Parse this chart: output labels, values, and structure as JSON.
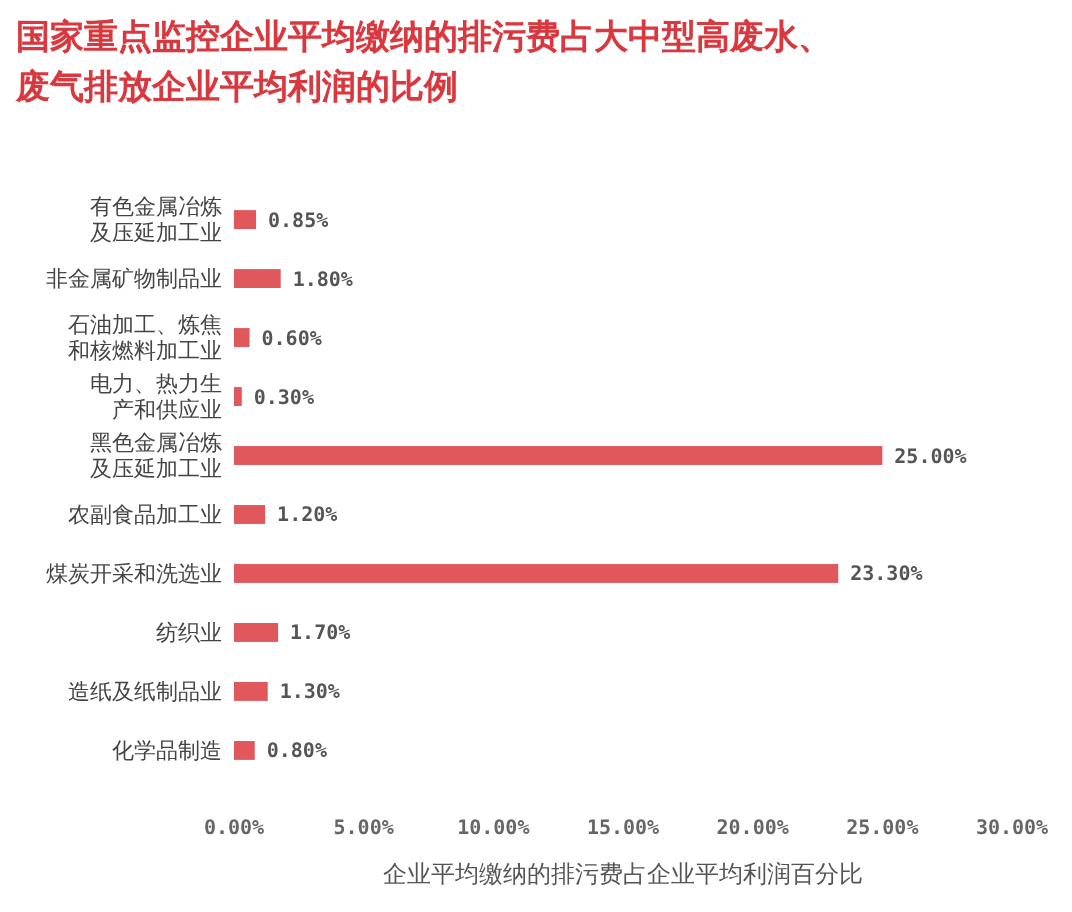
{
  "chart_data": {
    "type": "bar",
    "orientation": "horizontal",
    "title": "国家重点监控企业平均缴纳的排污费占大中型高废水、废气排放企业平均利润的比例",
    "xlabel": "企业平均缴纳的排污费占企业平均利润百分比",
    "categories": [
      "有色金属冶炼及压延加工业",
      "非金属矿物制品业",
      "石油加工、炼焦和核燃料加工业",
      "电力、热力生产和供应业",
      "黑色金属冶炼及压延加工业",
      "农副食品加工业",
      "煤炭开采和洗选业",
      "纺织业",
      "造纸及纸制品业",
      "化学品制造"
    ],
    "values": [
      0.85,
      1.8,
      0.6,
      0.3,
      25,
      1.2,
      23.3,
      1.7,
      1.3,
      0.8
    ],
    "value_labels": [
      "0.85%",
      "1.80%",
      "0.60%",
      "0.30%",
      "25.00%",
      "1.20%",
      "23.30%",
      "1.70%",
      "1.30%",
      "0.80%"
    ],
    "color": "#e0575c",
    "xlim": [
      0,
      30
    ],
    "xticks": [
      {
        "value": 0,
        "label": "0.00%"
      },
      {
        "value": 5,
        "label": "5.00%"
      },
      {
        "value": 10,
        "label": "10.00%"
      },
      {
        "value": 15,
        "label": "15.00%"
      },
      {
        "value": 20,
        "label": "20.00%"
      },
      {
        "value": 25,
        "label": "25.00%"
      },
      {
        "value": 30,
        "label": "30.00%"
      }
    ],
    "grid": false
  }
}
